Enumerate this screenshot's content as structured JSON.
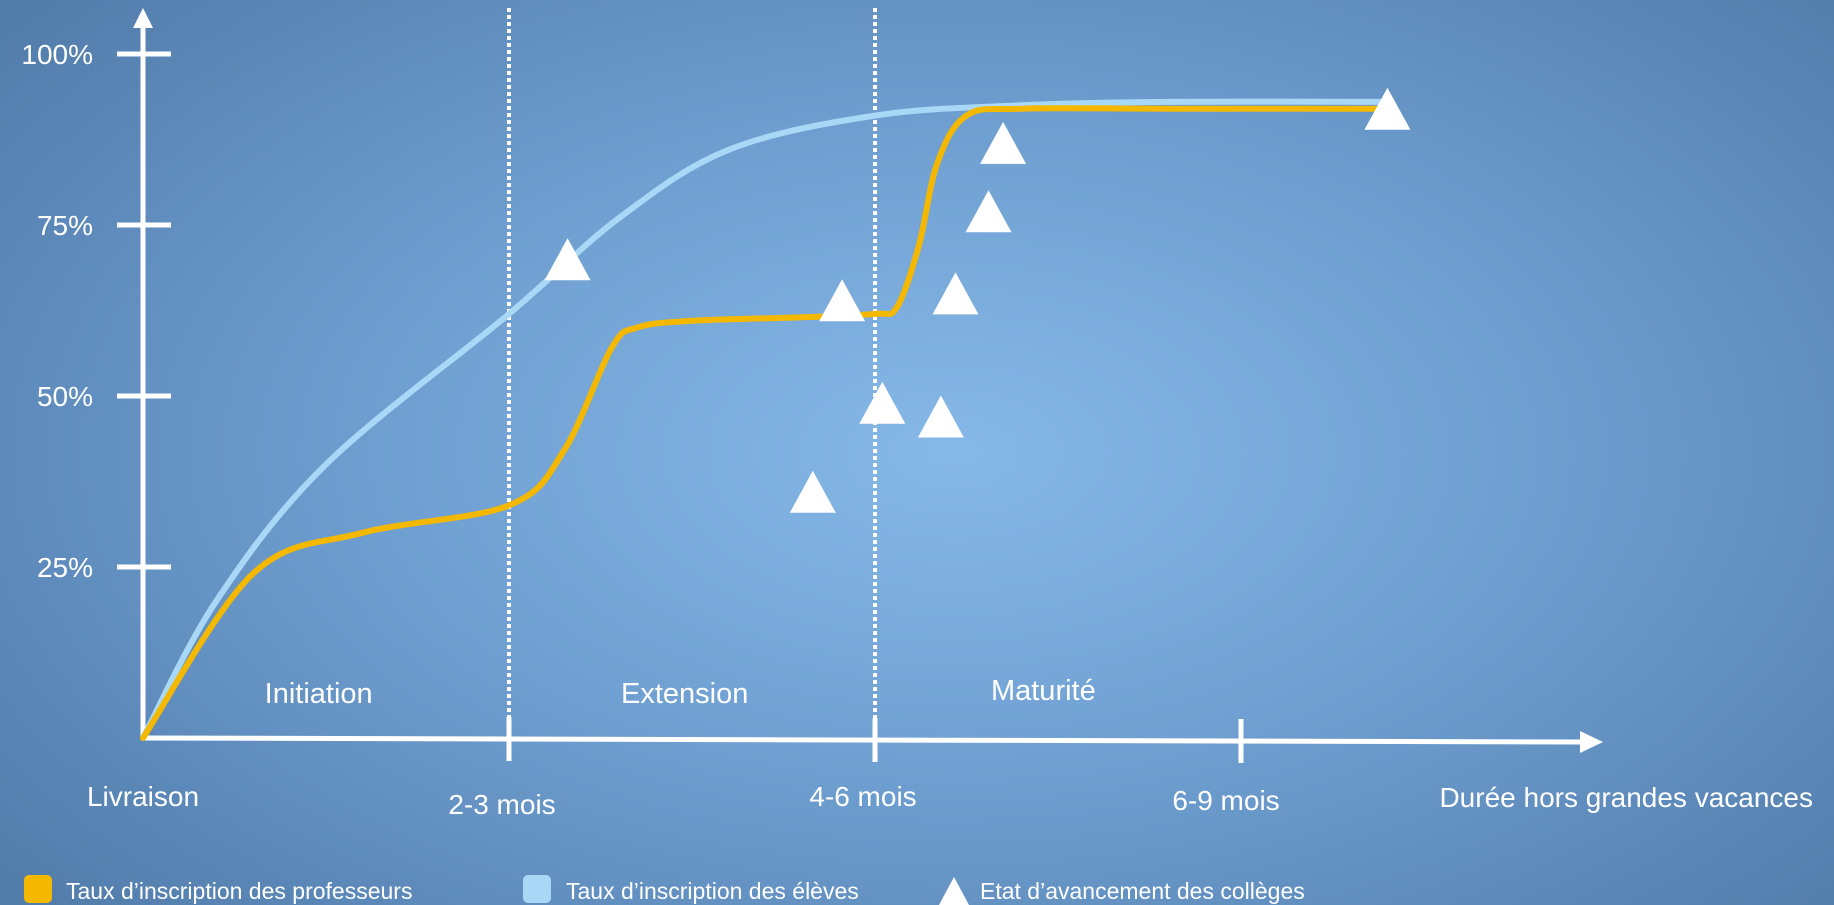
{
  "chart_data": {
    "type": "line",
    "title": "",
    "xlabel": "Durée hors grandes vacances",
    "ylabel": "",
    "x_ticks": [
      "Livraison",
      "2-3 mois",
      "4-6 mois",
      "6-9 mois"
    ],
    "y_ticks": [
      "25%",
      "50%",
      "75%",
      "100%"
    ],
    "ylim": [
      0,
      100
    ],
    "phases": [
      "Initiation",
      "Extension",
      "Maturité"
    ],
    "phase_boundaries": [
      1,
      2
    ],
    "series": [
      {
        "name": "Taux d’inscription des professeurs",
        "color": "#f5b800",
        "x": [
          0,
          0.3,
          0.6,
          1.0,
          1.15,
          1.28,
          1.35,
          1.5,
          1.8,
          2.0,
          2.06,
          2.12,
          2.17,
          2.25,
          2.4,
          2.8,
          3.4
        ],
        "y": [
          0,
          24,
          30,
          34,
          42,
          57,
          60,
          61,
          61.5,
          62,
          63,
          72,
          84,
          91,
          92,
          92,
          92
        ]
      },
      {
        "name": "Taux d’inscription des élèves",
        "color": "#a9d8f6",
        "x": [
          0,
          0.2,
          0.5,
          1.0,
          1.3,
          1.6,
          2.0,
          2.4,
          2.8,
          3.4
        ],
        "y": [
          0,
          20,
          40,
          62,
          76,
          86,
          91,
          92.5,
          93,
          93
        ]
      }
    ],
    "markers": {
      "name": "Etat d’avancement des collèges",
      "shape": "triangle",
      "color": "#ffffff",
      "x": [
        1.16,
        1.83,
        1.91,
        2.02,
        2.18,
        2.22,
        2.31,
        2.35,
        3.4
      ],
      "y": [
        70,
        36,
        64,
        49,
        47,
        65,
        77,
        87,
        92
      ]
    },
    "legend_position": "bottom"
  }
}
